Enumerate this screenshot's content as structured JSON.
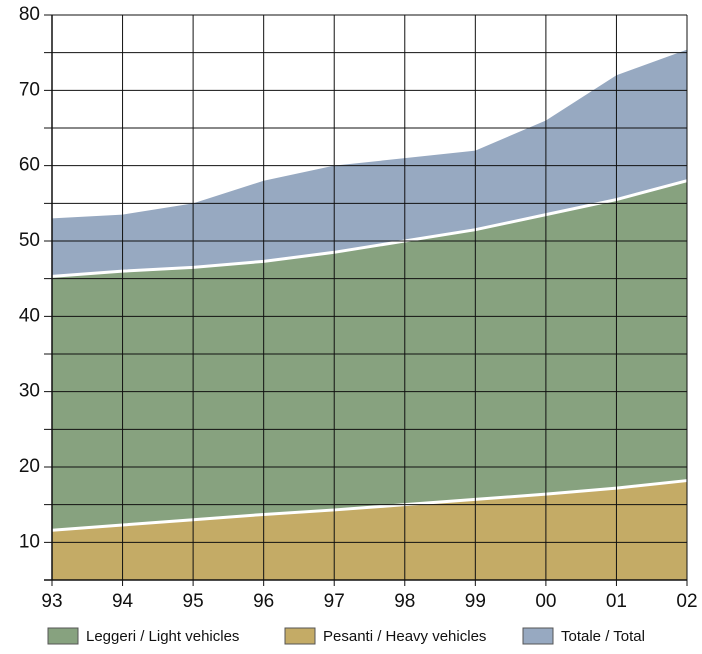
{
  "chart_data": {
    "type": "stacked_area",
    "categories": [
      "93",
      "94",
      "95",
      "96",
      "97",
      "98",
      "99",
      "00",
      "01",
      "02"
    ],
    "series": [
      {
        "name": "Pesanti / Heavy vehicles",
        "color": "#c4ab66",
        "values": [
          11.6,
          12.3,
          13,
          13.7,
          14.3,
          15,
          15.7,
          16.4,
          17.2,
          18.2
        ]
      },
      {
        "name": "Leggeri / Light vehicles",
        "color": "#87a27f",
        "values": [
          33.7,
          33.7,
          33.5,
          33.6,
          34.2,
          35,
          35.8,
          37.1,
          38.3,
          39.8
        ]
      },
      {
        "name": "Totale / Total",
        "color": "#97a9c1",
        "values": [
          53,
          53.5,
          55,
          58,
          60,
          61,
          62,
          66,
          72,
          75.4
        ]
      }
    ],
    "legend_order": [
      1,
      0,
      2
    ],
    "ylim": [
      5,
      80
    ],
    "yticks": [
      10,
      20,
      30,
      40,
      50,
      60,
      70,
      80
    ],
    "y_minor_ticks": [
      15,
      25,
      35,
      45,
      55,
      65,
      75
    ],
    "grid": true
  }
}
